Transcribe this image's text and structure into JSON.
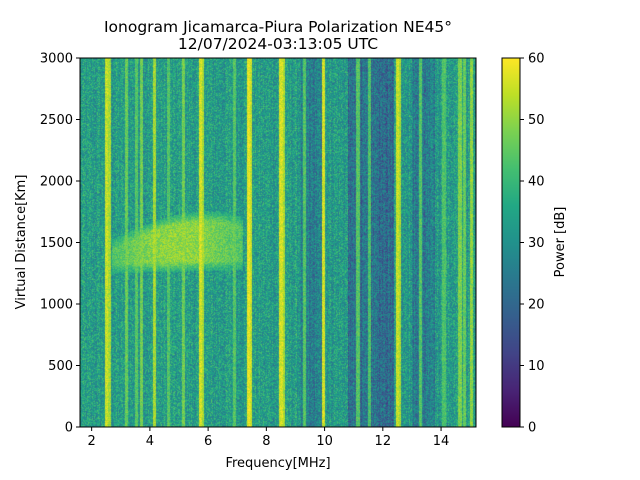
{
  "chart_data": {
    "type": "heatmap",
    "title": "Ionogram Jicamarca-Piura Polarization NE45°",
    "subtitle": "12/07/2024-03:13:05 UTC",
    "xlabel": "Frequency[MHz]",
    "ylabel": "Virtual Distance[Km]",
    "xlim": [
      1.6,
      15.2
    ],
    "ylim": [
      0,
      3000
    ],
    "xticks": [
      2,
      4,
      6,
      8,
      10,
      12,
      14
    ],
    "yticks": [
      0,
      500,
      1000,
      1500,
      2000,
      2500,
      3000
    ],
    "colormap": "viridis",
    "colorbar": {
      "label": "Power [dB]",
      "range": [
        0,
        60
      ],
      "ticks": [
        0,
        10,
        20,
        30,
        40,
        50,
        60
      ]
    },
    "background_power_db": 33,
    "vertical_interference_lines_mhz": [
      {
        "freq": 2.5,
        "power_db": 55
      },
      {
        "freq": 2.62,
        "power_db": 52
      },
      {
        "freq": 3.2,
        "power_db": 46
      },
      {
        "freq": 3.55,
        "power_db": 44
      },
      {
        "freq": 3.7,
        "power_db": 47
      },
      {
        "freq": 4.15,
        "power_db": 52
      },
      {
        "freq": 4.65,
        "power_db": 44
      },
      {
        "freq": 5.15,
        "power_db": 47
      },
      {
        "freq": 5.75,
        "power_db": 56
      },
      {
        "freq": 5.82,
        "power_db": 52
      },
      {
        "freq": 6.9,
        "power_db": 44
      },
      {
        "freq": 7.4,
        "power_db": 58
      },
      {
        "freq": 7.46,
        "power_db": 55
      },
      {
        "freq": 8.5,
        "power_db": 56
      },
      {
        "freq": 8.6,
        "power_db": 52
      },
      {
        "freq": 9.3,
        "power_db": 44
      },
      {
        "freq": 9.95,
        "power_db": 56
      },
      {
        "freq": 11.15,
        "power_db": 44
      },
      {
        "freq": 11.55,
        "power_db": 43
      },
      {
        "freq": 12.5,
        "power_db": 55
      },
      {
        "freq": 12.56,
        "power_db": 52
      },
      {
        "freq": 13.3,
        "power_db": 44
      },
      {
        "freq": 14.1,
        "power_db": 43
      },
      {
        "freq": 14.65,
        "power_db": 48
      },
      {
        "freq": 14.8,
        "power_db": 46
      },
      {
        "freq": 15.05,
        "power_db": 50
      }
    ],
    "low_power_bands_mhz": [
      {
        "from": 9.2,
        "to": 9.9,
        "power_db": 26
      },
      {
        "from": 10.8,
        "to": 12.4,
        "power_db": 22
      },
      {
        "from": 13.0,
        "to": 13.8,
        "power_db": 25
      }
    ],
    "echo_trace": {
      "description": "F-region echo",
      "freq_range_mhz": [
        2.7,
        7.2
      ],
      "virtual_distance_range_km": [
        1250,
        1750
      ],
      "peak_power_db": 50
    }
  }
}
